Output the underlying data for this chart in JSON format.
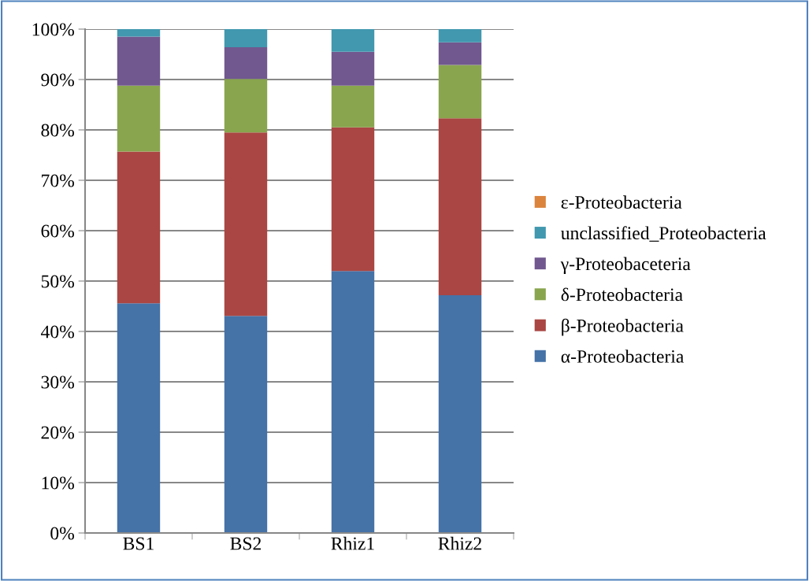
{
  "chart_data": {
    "type": "bar",
    "stacked": true,
    "categories": [
      "BS1",
      "BS2",
      "Rhiz1",
      "Rhiz2"
    ],
    "series": [
      {
        "name": "α-Proteobacteria",
        "color": "#4572a7",
        "values": [
          45.6,
          43.1,
          52.0,
          47.2
        ]
      },
      {
        "name": "β-Proteobacteria",
        "color": "#aa4643",
        "values": [
          30.1,
          36.4,
          28.5,
          35.1
        ]
      },
      {
        "name": "δ-Proteobacteria",
        "color": "#89a54e",
        "values": [
          13.1,
          10.6,
          8.3,
          10.6
        ]
      },
      {
        "name": "γ-Proteobaceteria",
        "color": "#71588f",
        "values": [
          9.7,
          6.3,
          6.7,
          4.5
        ]
      },
      {
        "name": "unclassified_Proteobacteria",
        "color": "#4198af",
        "values": [
          1.5,
          3.6,
          4.5,
          2.6
        ]
      },
      {
        "name": "ε-Proteobacteria",
        "color": "#db843d",
        "values": [
          0,
          0,
          0,
          0
        ]
      }
    ],
    "ylim": [
      0,
      100
    ],
    "yticks": [
      {
        "value": 0,
        "label": "0%"
      },
      {
        "value": 10,
        "label": "10%"
      },
      {
        "value": 20,
        "label": "20%"
      },
      {
        "value": 30,
        "label": "30%"
      },
      {
        "value": 40,
        "label": "40%"
      },
      {
        "value": 50,
        "label": "50%"
      },
      {
        "value": 60,
        "label": "60%"
      },
      {
        "value": 70,
        "label": "70%"
      },
      {
        "value": 80,
        "label": "80%"
      },
      {
        "value": 90,
        "label": "90%"
      },
      {
        "value": 100,
        "label": "100%"
      }
    ],
    "grid": "y",
    "legend": "right"
  }
}
